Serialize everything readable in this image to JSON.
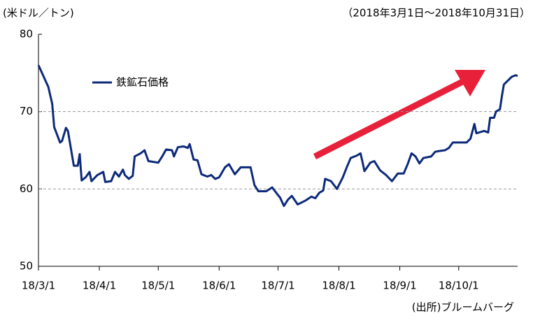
{
  "chart_data": {
    "type": "line",
    "y_label": "(米ドル／トン)",
    "subtitle": "（2018年3月1日～2018年10月31日）",
    "source": "(出所)ブルームバーグ",
    "ylim": [
      50,
      80
    ],
    "yticks": [
      50,
      60,
      70,
      80
    ],
    "grid": true,
    "xlim": [
      "2018-03-01",
      "2018-10-31"
    ],
    "xticks": [
      {
        "value": "2018-03-01",
        "label": "18/3/1"
      },
      {
        "value": "2018-04-01",
        "label": "18/4/1"
      },
      {
        "value": "2018-05-01",
        "label": "18/5/1"
      },
      {
        "value": "2018-06-01",
        "label": "18/6/1"
      },
      {
        "value": "2018-07-01",
        "label": "18/7/1"
      },
      {
        "value": "2018-08-01",
        "label": "18/8/1"
      },
      {
        "value": "2018-09-01",
        "label": "18/9/1"
      },
      {
        "value": "2018-10-01",
        "label": "18/10/1"
      }
    ],
    "legend": "upper left",
    "x": [
      "2018-03-01",
      "2018-03-06",
      "2018-03-08",
      "2018-03-09",
      "2018-03-12",
      "2018-03-13",
      "2018-03-15",
      "2018-03-16",
      "2018-03-17",
      "2018-03-19",
      "2018-03-21",
      "2018-03-22",
      "2018-03-23",
      "2018-03-25",
      "2018-03-27",
      "2018-03-28",
      "2018-03-31",
      "2018-04-03",
      "2018-04-04",
      "2018-04-07",
      "2018-04-09",
      "2018-04-11",
      "2018-04-13",
      "2018-04-14",
      "2018-04-16",
      "2018-04-18",
      "2018-04-19",
      "2018-04-22",
      "2018-04-24",
      "2018-04-26",
      "2018-05-01",
      "2018-05-03",
      "2018-05-05",
      "2018-05-08",
      "2018-05-09",
      "2018-05-11",
      "2018-05-14",
      "2018-05-16",
      "2018-05-17",
      "2018-05-19",
      "2018-05-21",
      "2018-05-23",
      "2018-05-26",
      "2018-05-28",
      "2018-05-30",
      "2018-06-01",
      "2018-06-04",
      "2018-06-06",
      "2018-06-09",
      "2018-06-12",
      "2018-06-17",
      "2018-06-19",
      "2018-06-21",
      "2018-06-25",
      "2018-06-28",
      "2018-07-01",
      "2018-07-02",
      "2018-07-04",
      "2018-07-06",
      "2018-07-08",
      "2018-07-11",
      "2018-07-15",
      "2018-07-18",
      "2018-07-20",
      "2018-07-22",
      "2018-07-24",
      "2018-07-25",
      "2018-07-28",
      "2018-07-31",
      "2018-08-03",
      "2018-08-05",
      "2018-08-07",
      "2018-08-10",
      "2018-08-12",
      "2018-08-13",
      "2018-08-14",
      "2018-08-17",
      "2018-08-19",
      "2018-08-22",
      "2018-08-25",
      "2018-08-28",
      "2018-08-31",
      "2018-09-03",
      "2018-09-05",
      "2018-09-07",
      "2018-09-09",
      "2018-09-11",
      "2018-09-13",
      "2018-09-17",
      "2018-09-19",
      "2018-09-21",
      "2018-09-24",
      "2018-09-26",
      "2018-09-28",
      "2018-10-05",
      "2018-10-07",
      "2018-10-09",
      "2018-10-10",
      "2018-10-14",
      "2018-10-16",
      "2018-10-17",
      "2018-10-19",
      "2018-10-20",
      "2018-10-22",
      "2018-10-23",
      "2018-10-24",
      "2018-10-28",
      "2018-10-30",
      "2018-10-31"
    ],
    "series": [
      {
        "name": "鉄鉱石価格",
        "color": "#0d2a7a",
        "values": [
          76.0,
          73.2,
          71.0,
          68.0,
          66.0,
          66.2,
          67.9,
          67.5,
          66.0,
          63.0,
          63.0,
          64.5,
          61.1,
          61.5,
          62.2,
          61.0,
          61.8,
          62.2,
          60.9,
          61.0,
          62.2,
          61.6,
          62.5,
          61.8,
          61.3,
          61.7,
          64.2,
          64.6,
          65.0,
          63.6,
          63.4,
          64.2,
          65.1,
          65.0,
          64.2,
          65.4,
          65.5,
          65.3,
          65.8,
          63.8,
          63.7,
          61.9,
          61.6,
          61.8,
          61.3,
          61.5,
          62.8,
          63.2,
          61.9,
          62.8,
          62.8,
          60.5,
          59.7,
          59.7,
          60.2,
          59.2,
          58.9,
          57.8,
          58.6,
          59.1,
          58.0,
          58.5,
          59.0,
          58.8,
          59.5,
          59.8,
          61.3,
          61.0,
          60.0,
          61.5,
          62.8,
          64.0,
          64.3,
          64.6,
          63.5,
          62.3,
          63.4,
          63.6,
          62.4,
          61.8,
          61.0,
          62.0,
          62.0,
          63.2,
          64.6,
          64.2,
          63.3,
          64.0,
          64.2,
          64.8,
          64.9,
          65.0,
          65.3,
          66.0,
          66.0,
          66.5,
          68.4,
          67.2,
          67.5,
          67.3,
          69.2,
          69.2,
          70.0,
          70.3,
          72.0,
          73.5,
          74.5,
          74.7,
          74.6
        ]
      }
    ]
  }
}
